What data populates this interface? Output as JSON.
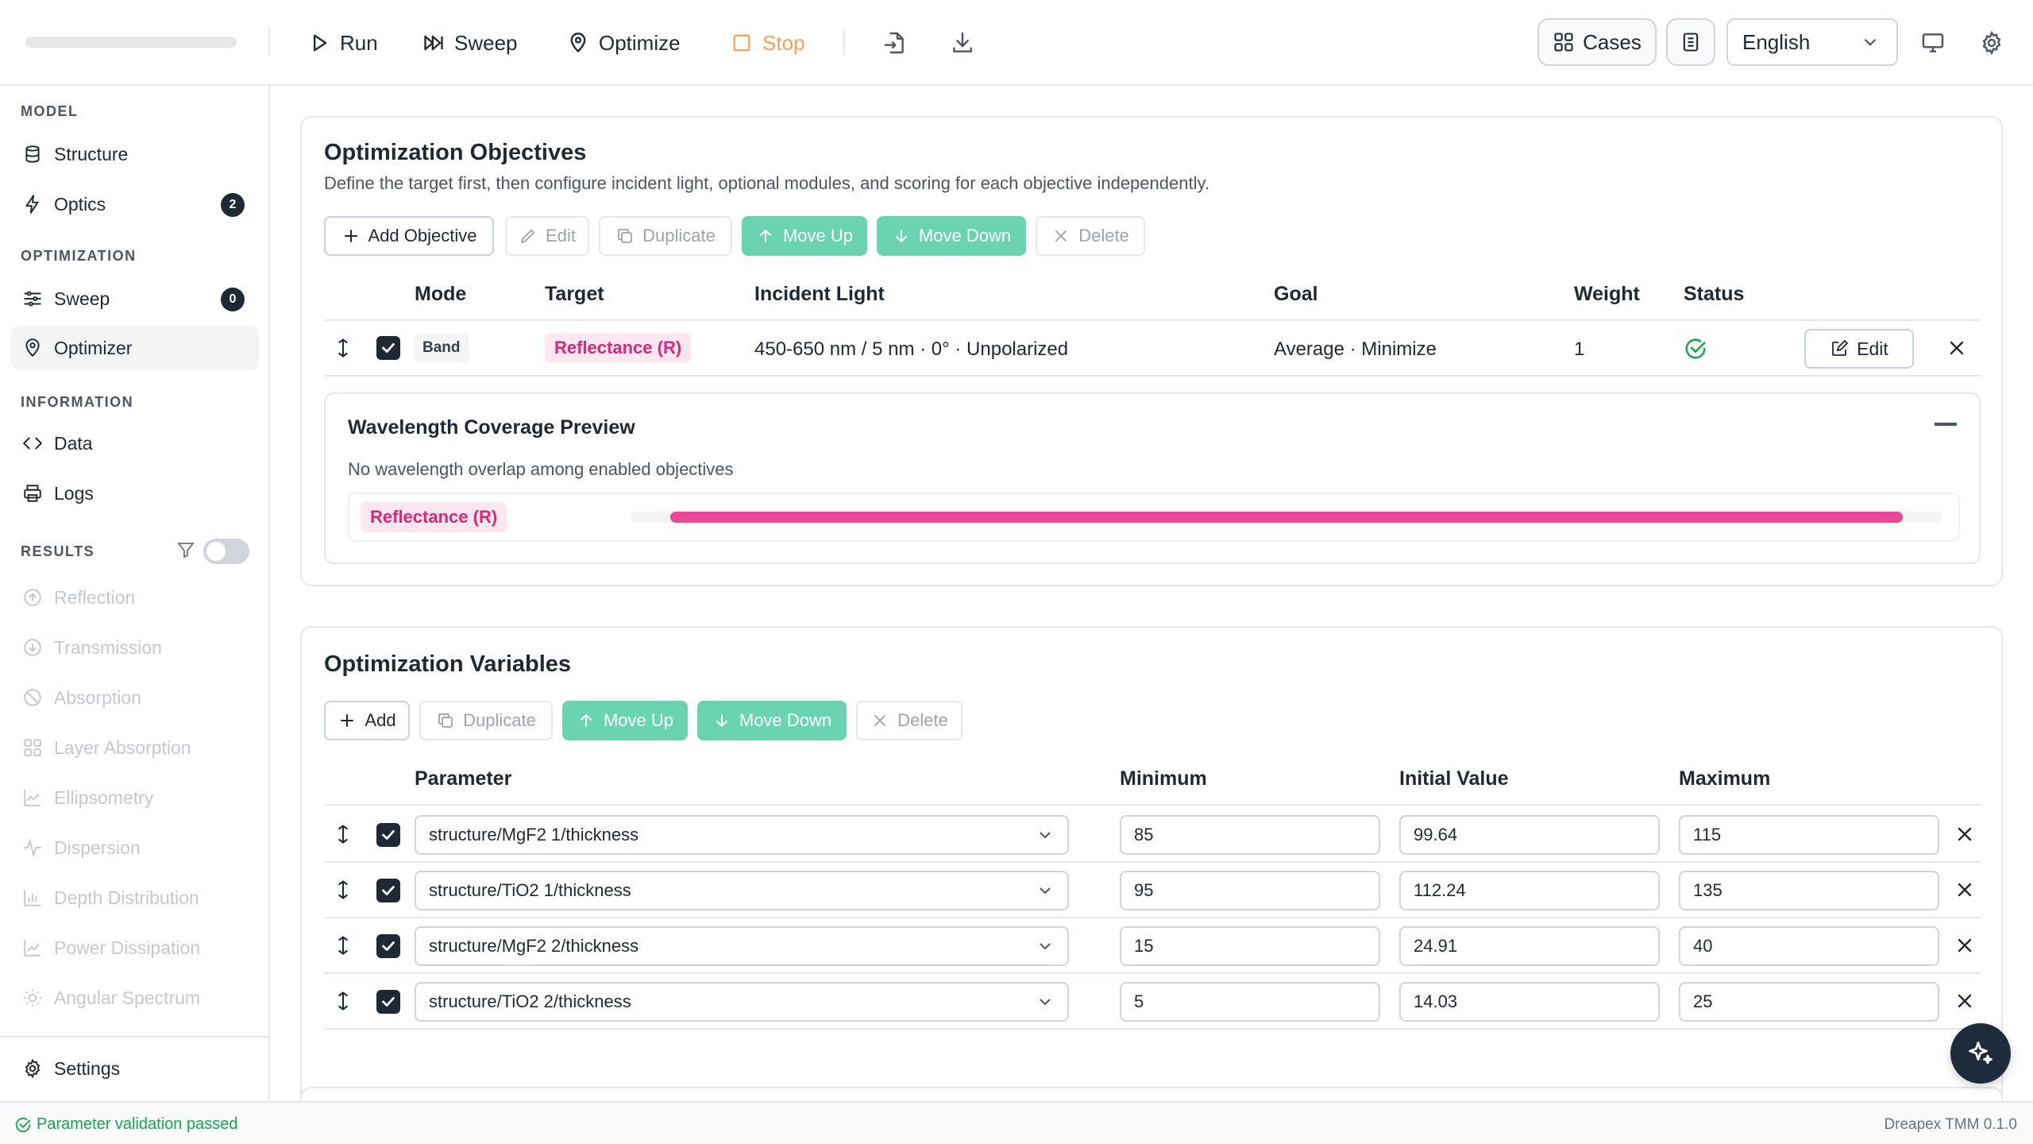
{
  "toolbar": {
    "run_label": "Run",
    "sweep_label": "Sweep",
    "optimize_label": "Optimize",
    "stop_label": "Stop",
    "cases_label": "Cases",
    "language": "English"
  },
  "sidebar": {
    "model_label": "MODEL",
    "optimization_label": "OPTIMIZATION",
    "information_label": "INFORMATION",
    "results_label": "RESULTS",
    "structure": "Structure",
    "optics": "Optics",
    "optics_badge": "2",
    "sweep": "Sweep",
    "sweep_badge": "0",
    "optimizer": "Optimizer",
    "data": "Data",
    "logs": "Logs",
    "results": [
      "Reflection",
      "Transmission",
      "Absorption",
      "Layer Absorption",
      "Ellipsometry",
      "Dispersion",
      "Depth Distribution",
      "Power Dissipation",
      "Angular Spectrum"
    ],
    "settings": "Settings"
  },
  "status": {
    "message": "Parameter validation passed",
    "version": "Dreapex TMM 0.1.0"
  },
  "objectives": {
    "title": "Optimization Objectives",
    "subtitle": "Define the target first, then configure incident light, optional modules, and scoring for each objective independently.",
    "buttons": {
      "add": "Add Objective",
      "edit": "Edit",
      "duplicate": "Duplicate",
      "move_up": "Move Up",
      "move_down": "Move Down",
      "delete": "Delete"
    },
    "columns": {
      "mode": "Mode",
      "target": "Target",
      "incident": "Incident Light",
      "goal": "Goal",
      "weight": "Weight",
      "status": "Status"
    },
    "row": {
      "mode": "Band",
      "target": "Reflectance (R)",
      "incident": "450-650 nm / 5 nm · 0° · Unpolarized",
      "goal": "Average · Minimize",
      "weight": "1",
      "edit_label": "Edit"
    },
    "preview": {
      "title": "Wavelength Coverage Preview",
      "subtitle": "No wavelength overlap among enabled objectives",
      "tag": "Reflectance (R)",
      "coverage_start": 0.03,
      "coverage_end": 0.97
    }
  },
  "variables": {
    "title": "Optimization Variables",
    "buttons": {
      "add": "Add",
      "duplicate": "Duplicate",
      "move_up": "Move Up",
      "move_down": "Move Down",
      "delete": "Delete"
    },
    "columns": {
      "parameter": "Parameter",
      "minimum": "Minimum",
      "initial": "Initial Value",
      "maximum": "Maximum"
    },
    "rows": [
      {
        "parameter": "structure/MgF2 1/thickness",
        "min": "85",
        "initial": "99.64",
        "max": "115"
      },
      {
        "parameter": "structure/TiO2 1/thickness",
        "min": "95",
        "initial": "112.24",
        "max": "135"
      },
      {
        "parameter": "structure/MgF2 2/thickness",
        "min": "15",
        "initial": "24.91",
        "max": "40"
      },
      {
        "parameter": "structure/TiO2 2/thickness",
        "min": "5",
        "initial": "14.03",
        "max": "25"
      }
    ]
  },
  "colors": {
    "accent_green": "#6ad4b2",
    "target_pink": "#db2777",
    "coverage_pink": "#ec4899",
    "stop_orange": "#f0a35e",
    "ok_green": "#16a34a"
  }
}
